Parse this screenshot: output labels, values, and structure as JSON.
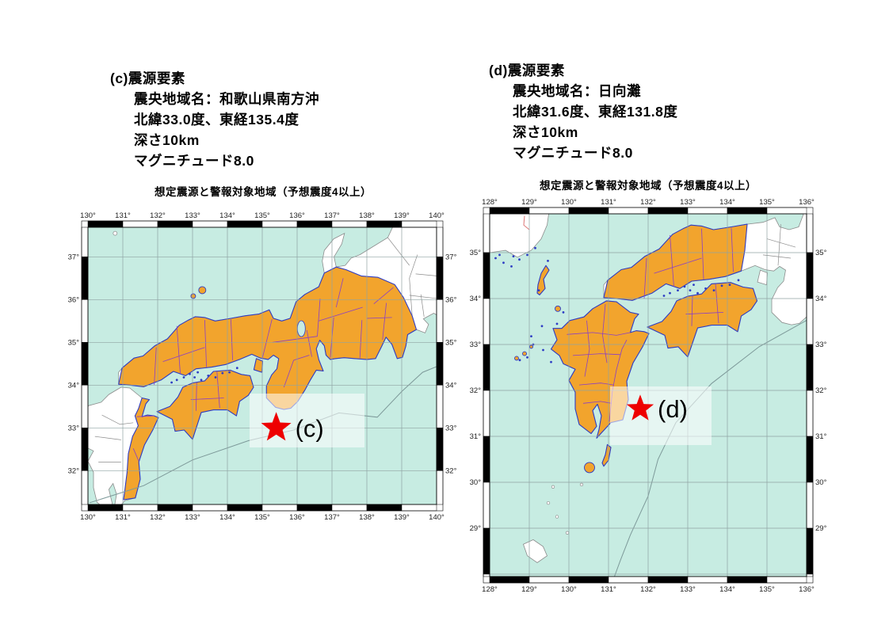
{
  "panels": [
    {
      "id": "c",
      "info": {
        "heading": "(c)震源要素",
        "lines": [
          "震央地域名：和歌山県南方沖",
          "北緯33.0度、東経135.4度",
          "深さ10km",
          "マグニチュード8.0"
        ]
      },
      "map_title": "想定震源と警報対象地域（予想震度4以上）",
      "epicenter": {
        "region": "和歌山県南方沖",
        "lat": 33.0,
        "lon": 135.4,
        "depth_km": 10,
        "magnitude": 8.0,
        "marker_label": "(c)"
      },
      "axis": {
        "lon_labels": [
          "130°",
          "131°",
          "132°",
          "133°",
          "134°",
          "135°",
          "136°",
          "137°",
          "138°",
          "139°",
          "140°"
        ],
        "lat_labels": [
          "37°",
          "36°",
          "35°",
          "34°",
          "33°",
          "32°"
        ]
      }
    },
    {
      "id": "d",
      "info": {
        "heading": "(d)震源要素",
        "lines": [
          "震央地域名：日向灘",
          "北緯31.6度、東経131.8度",
          "深さ10km",
          "マグニチュード8.0"
        ]
      },
      "map_title": "想定震源と警報対象地域（予想震度4以上）",
      "epicenter": {
        "region": "日向灘",
        "lat": 31.6,
        "lon": 131.8,
        "depth_km": 10,
        "magnitude": 8.0,
        "marker_label": "(d)"
      },
      "axis": {
        "lon_labels": [
          "128°",
          "129°",
          "130°",
          "131°",
          "132°",
          "133°",
          "134°",
          "135°",
          "136°"
        ],
        "lat_labels": [
          "35°",
          "34°",
          "33°",
          "32°",
          "31°",
          "30°",
          "29°"
        ]
      }
    }
  ],
  "colors": {
    "sea": "#c7ece2",
    "land": "#ffffff",
    "warning_area": "#f2a42d",
    "warning_border": "#2e3cc4",
    "pref_border": "#8a3fc6",
    "plain_border": "#8c8c8c",
    "grid": "#8fa3a3",
    "trough": "#7d9999",
    "star": "#ee0000",
    "frame": "#000000",
    "highlight": "rgba(255,255,255,0.55)",
    "tick": "#222222",
    "label": "#000000"
  }
}
